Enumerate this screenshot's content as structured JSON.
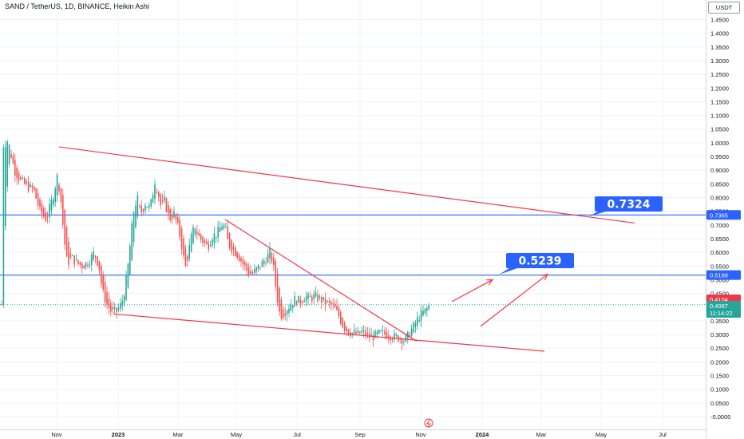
{
  "header": {
    "symbol_line": "SAND / TetherUS, 1D, BINANCE, Heikin Ashi",
    "currency": "USDT"
  },
  "chart_data": {
    "type": "candlestick",
    "chart_style": "Heikin Ashi",
    "ylim": [
      -0.03,
      1.52
    ],
    "y_ticks": [
      "-0.0000",
      "0.0500",
      "0.1000",
      "0.1500",
      "0.2000",
      "0.2500",
      "0.3000",
      "0.3500",
      "0.4000",
      "0.4500",
      "0.5000",
      "0.5500",
      "0.6000",
      "0.6500",
      "0.7000",
      "0.7500",
      "0.8000",
      "0.8500",
      "0.9000",
      "0.9500",
      "1.0000",
      "1.0500",
      "1.1000",
      "1.1500",
      "1.2000",
      "1.2500",
      "1.3000",
      "1.3500",
      "1.4000",
      "1.4500"
    ],
    "x_ticks": [
      {
        "label": "Nov",
        "bold": false
      },
      {
        "label": "2023",
        "bold": true
      },
      {
        "label": "Mar",
        "bold": false
      },
      {
        "label": "May",
        "bold": false
      },
      {
        "label": "Jul",
        "bold": false
      },
      {
        "label": "Sep",
        "bold": false
      },
      {
        "label": "Nov",
        "bold": false
      },
      {
        "label": "2024",
        "bold": true
      },
      {
        "label": "Mar",
        "bold": false
      },
      {
        "label": "May",
        "bold": false
      },
      {
        "label": "Jul",
        "bold": false
      }
    ],
    "colors": {
      "up": "#26a69a",
      "down": "#ef5350",
      "trendline": "#f23645",
      "hline": "#2962ff",
      "callout": "#2962ff",
      "current_price_line": "#26a69a",
      "grid": "#f0f3fa"
    },
    "horizontal_lines": [
      {
        "value": 0.7365,
        "label": "0.7365"
      },
      {
        "value": 0.5168,
        "label": "0.5168"
      }
    ],
    "price_badges": [
      {
        "value": 0.4104,
        "label": "0.4104",
        "color": "#f23645"
      },
      {
        "value": 0.4087,
        "label": "0.4087",
        "sublabel": "11:14:22",
        "color": "#26a69a"
      }
    ],
    "callouts": [
      {
        "label": "0.7324",
        "value": 0.7324
      },
      {
        "label": "0.5239",
        "value": 0.5239
      }
    ],
    "trendlines": [
      {
        "from": [
          74,
          0.985
        ],
        "to": [
          795,
          0.707
        ],
        "desc": "upper falling channel line"
      },
      {
        "from": [
          142,
          0.375
        ],
        "to": [
          682,
          0.239
        ],
        "desc": "lower channel line"
      },
      {
        "from": [
          282,
          0.72
        ],
        "to": [
          522,
          0.275
        ],
        "desc": "inner falling wedge line"
      }
    ],
    "arrows": [
      {
        "from": [
          602,
          0.33
        ],
        "to": [
          686,
          0.52
        ]
      },
      {
        "from": [
          566,
          0.42
        ],
        "to": [
          617,
          0.5
        ]
      }
    ],
    "last_close": 0.4087
  }
}
